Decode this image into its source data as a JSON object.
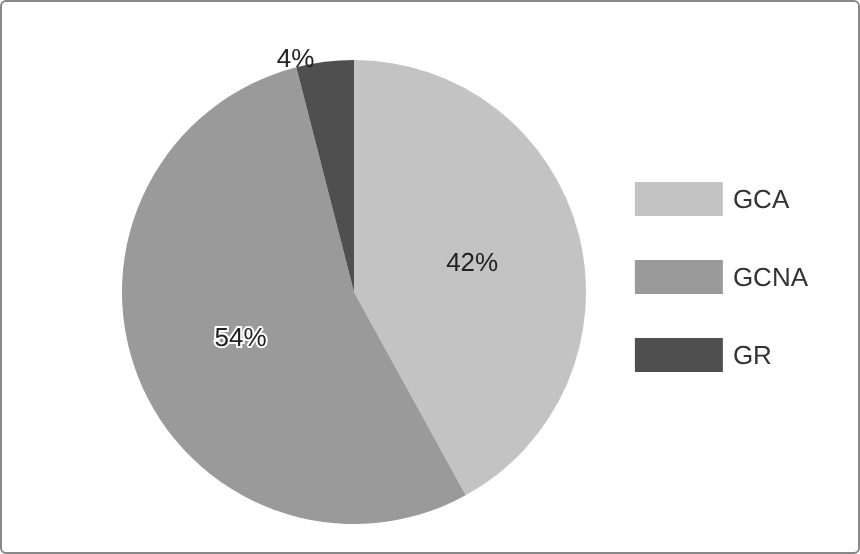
{
  "chart_data": {
    "type": "pie",
    "categories": [
      "GCA",
      "GCNA",
      "GR"
    ],
    "values": [
      42,
      54,
      4
    ],
    "colors": [
      "#c3c3c3",
      "#9a9a9a",
      "#4f4f4f"
    ],
    "value_labels": [
      "42%",
      "54%",
      "4%"
    ],
    "legend": "right"
  }
}
